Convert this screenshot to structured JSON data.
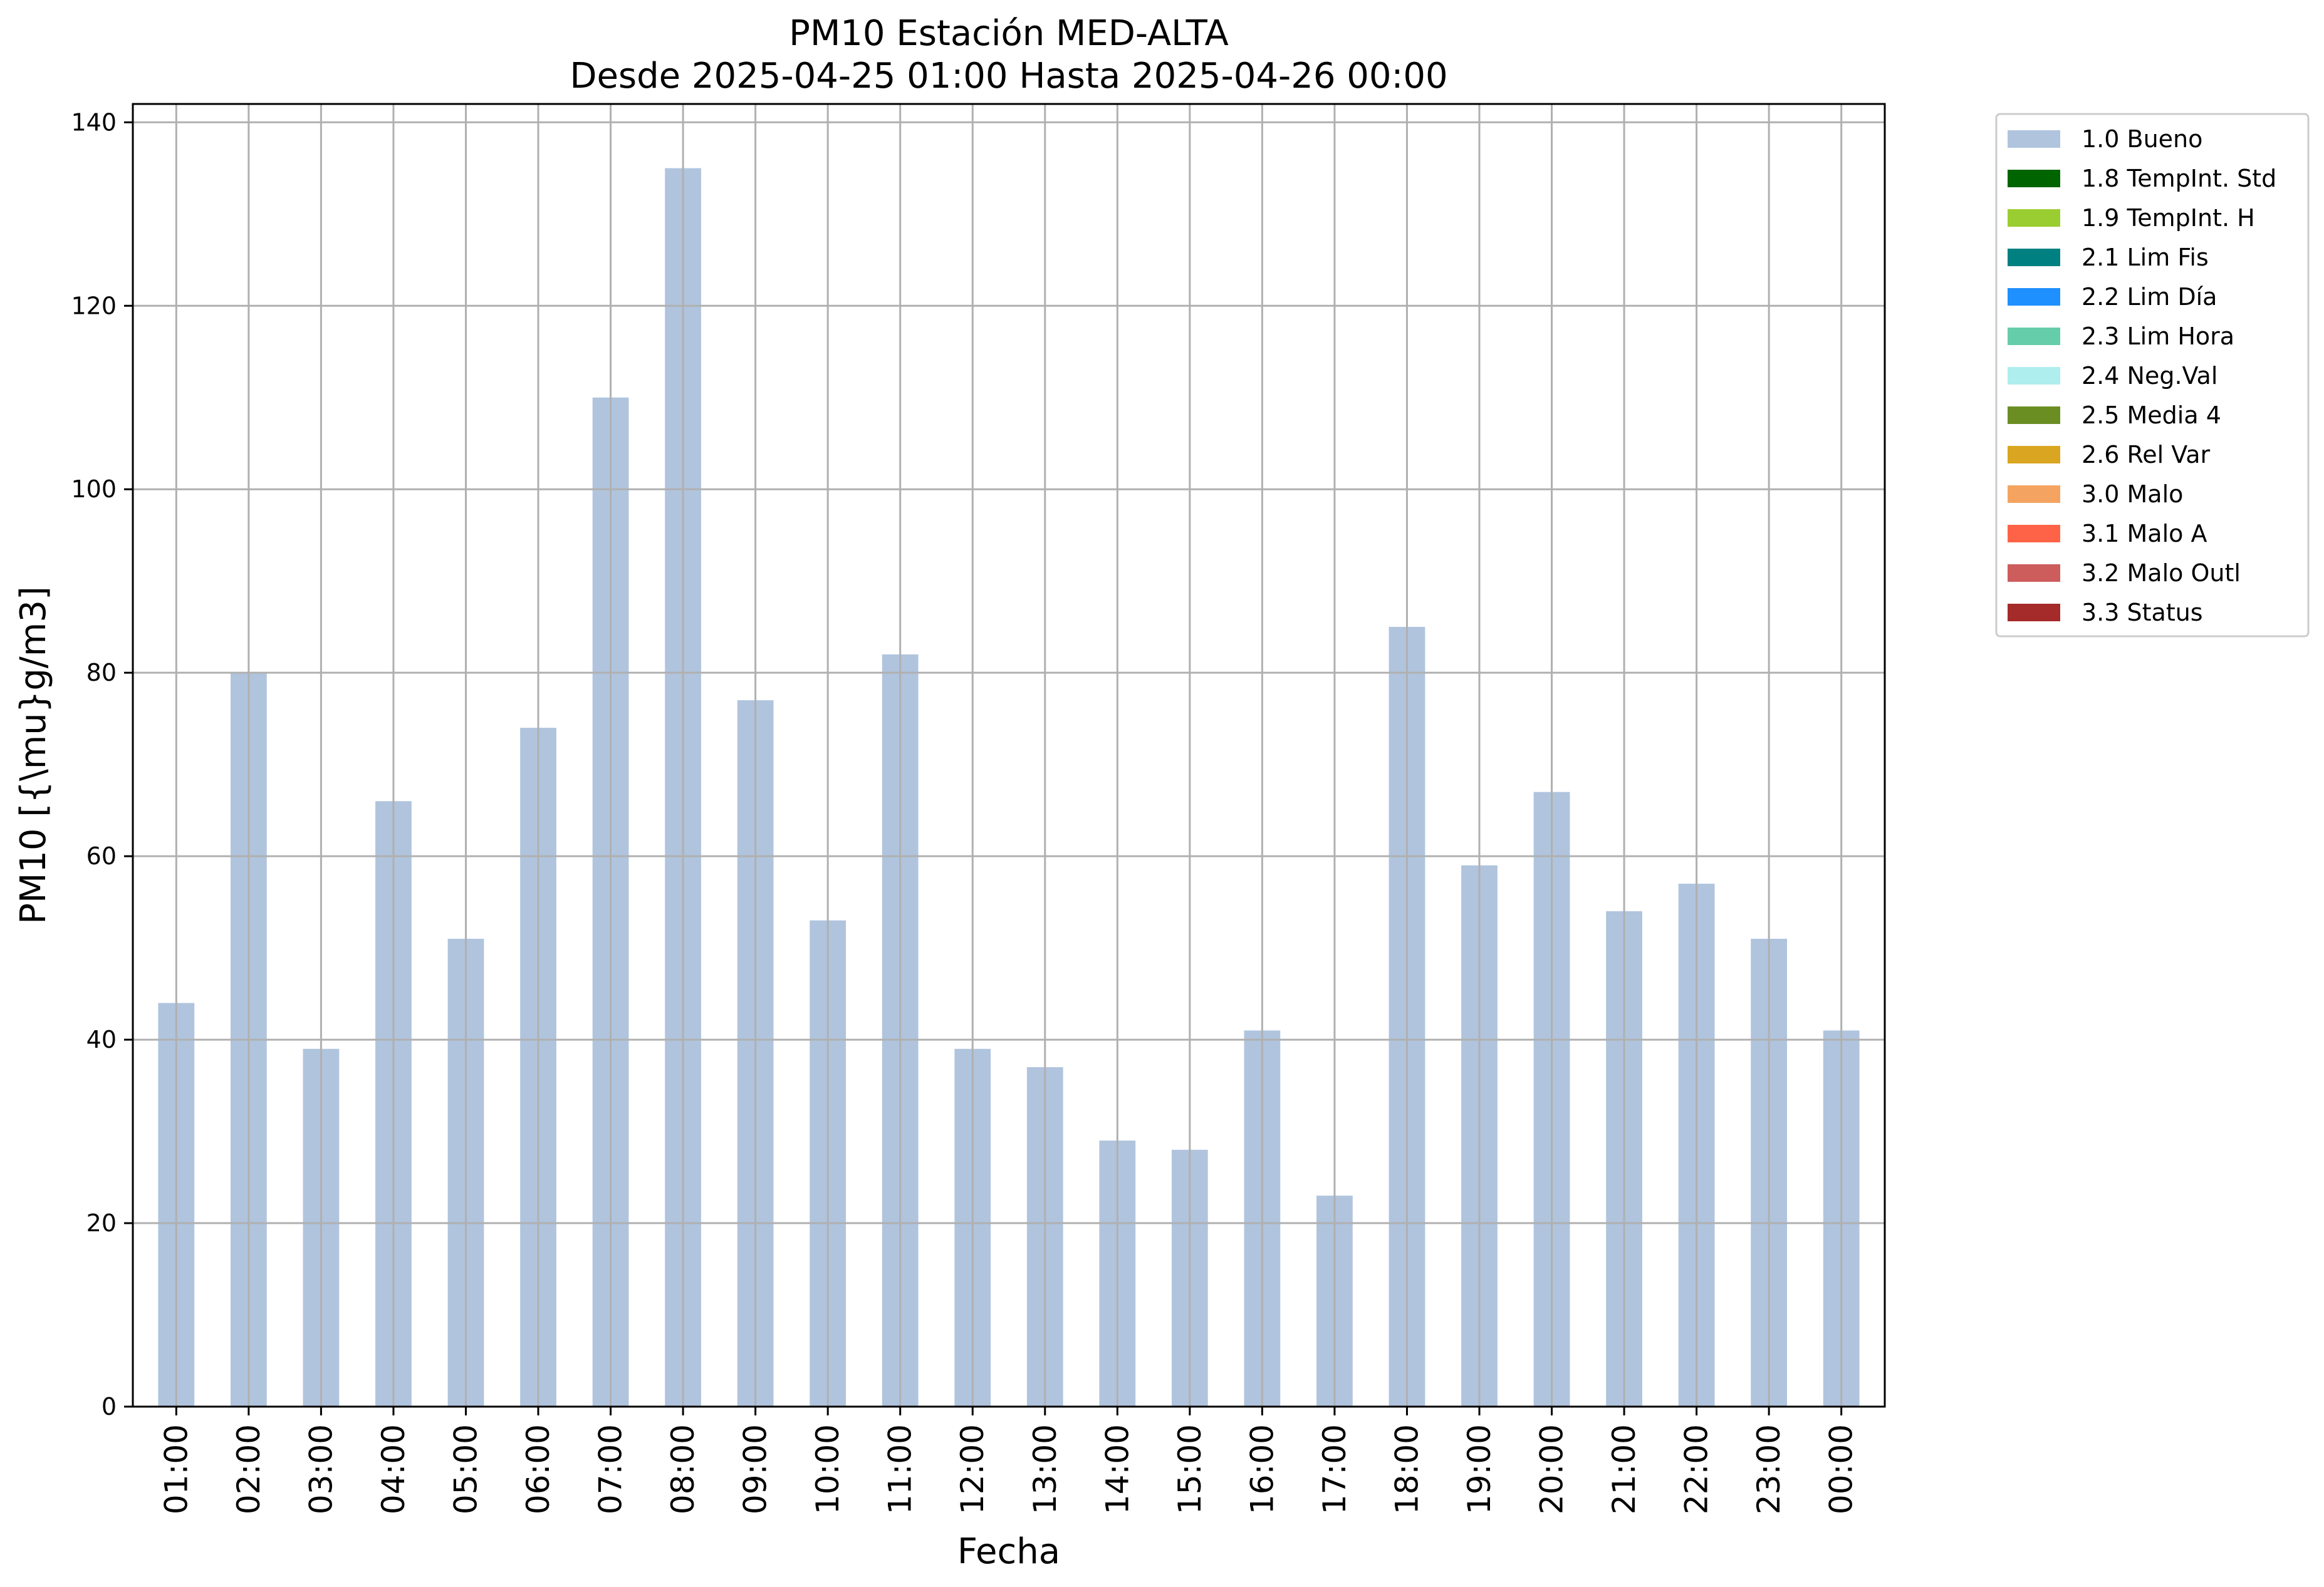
{
  "chart_data": {
    "type": "bar",
    "title_line1": "PM10 Estación MED-ALTA",
    "title_line2": "Desde 2025-04-25 01:00 Hasta 2025-04-26 00:00",
    "xlabel": "Fecha",
    "ylabel": "PM10 [{\\mu}g/m3]",
    "ylim": [
      0,
      142
    ],
    "yticks": [
      0,
      20,
      40,
      60,
      80,
      100,
      120,
      140
    ],
    "grid": true,
    "legend_position": "outside-top-right",
    "categories": [
      "01:00",
      "02:00",
      "03:00",
      "04:00",
      "05:00",
      "06:00",
      "07:00",
      "08:00",
      "09:00",
      "10:00",
      "11:00",
      "12:00",
      "13:00",
      "14:00",
      "15:00",
      "16:00",
      "17:00",
      "18:00",
      "19:00",
      "20:00",
      "21:00",
      "22:00",
      "23:00",
      "00:00"
    ],
    "series": [
      {
        "name": "1.0 Bueno",
        "color": "#b0c4de",
        "values": [
          44,
          80,
          39,
          66,
          51,
          74,
          110,
          135,
          77,
          53,
          82,
          39,
          37,
          29,
          28,
          41,
          23,
          85,
          59,
          67,
          54,
          57,
          51,
          41
        ]
      }
    ],
    "legend": [
      {
        "label": "1.0 Bueno",
        "color": "#b0c4de"
      },
      {
        "label": "1.8 TempInt. Std",
        "color": "#006400"
      },
      {
        "label": "1.9 TempInt. H",
        "color": "#9acd32"
      },
      {
        "label": "2.1 Lim Fis",
        "color": "#008080"
      },
      {
        "label": "2.2 Lim Día",
        "color": "#1e90ff"
      },
      {
        "label": "2.3 Lim Hora",
        "color": "#66cdaa"
      },
      {
        "label": "2.4 Neg.Val",
        "color": "#afeeee"
      },
      {
        "label": "2.5 Media 4",
        "color": "#6b8e23"
      },
      {
        "label": "2.6 Rel Var",
        "color": "#daa520"
      },
      {
        "label": "3.0 Malo",
        "color": "#f4a460"
      },
      {
        "label": "3.1 Malo A",
        "color": "#ff6347"
      },
      {
        "label": "3.2 Malo Outl",
        "color": "#cd5c5c"
      },
      {
        "label": "3.3 Status",
        "color": "#a52a2a"
      }
    ]
  }
}
